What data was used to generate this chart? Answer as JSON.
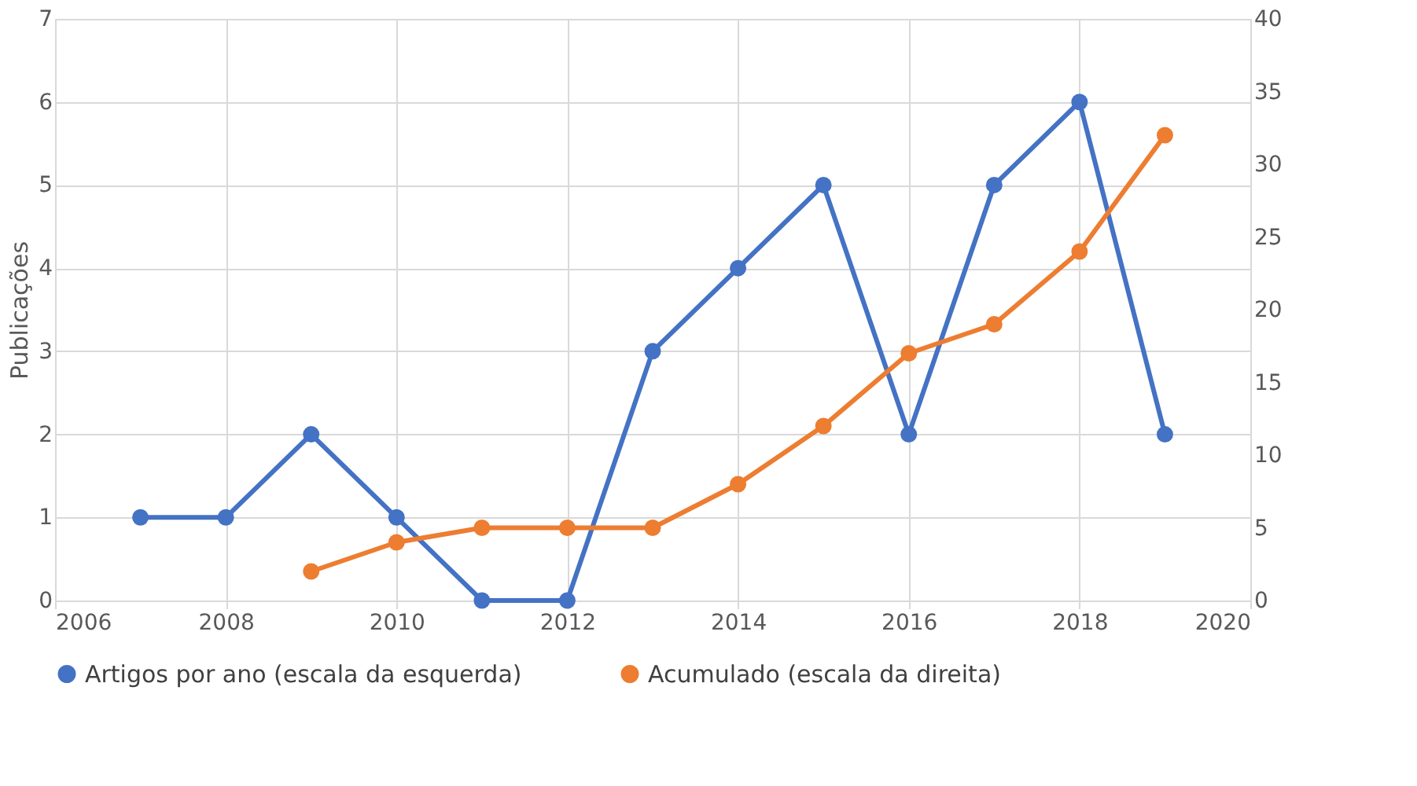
{
  "chart_data": {
    "type": "line",
    "ylabel": "Publicações",
    "x": [
      2007,
      2008,
      2009,
      2010,
      2011,
      2012,
      2013,
      2014,
      2015,
      2016,
      2017,
      2018,
      2019
    ],
    "series": [
      {
        "name": "Artigos por ano (escala da esquerda)",
        "color": "#4472c4",
        "values": [
          1,
          1,
          2,
          1,
          0,
          0,
          3,
          4,
          5,
          2,
          5,
          6,
          2
        ]
      },
      {
        "name": "Acumulado (escala da direita)",
        "color": "#ed7d31",
        "axis": "y2",
        "values": [
          null,
          null,
          2,
          4,
          5,
          5,
          5,
          8,
          12,
          17,
          19,
          24,
          32
        ]
      }
    ],
    "xlim": [
      2006,
      2020
    ],
    "xticks": [
      2006,
      2008,
      2010,
      2012,
      2014,
      2016,
      2018,
      2020
    ],
    "ylim": [
      0,
      7
    ],
    "yticks": [
      0,
      1,
      2,
      3,
      4,
      5,
      6,
      7
    ],
    "y2lim": [
      0,
      40
    ],
    "y2ticks": [
      0,
      5,
      10,
      15,
      20,
      25,
      30,
      35,
      40
    ],
    "grid": true,
    "legend": "bottom",
    "marker": "circle",
    "line_style": "solid"
  }
}
